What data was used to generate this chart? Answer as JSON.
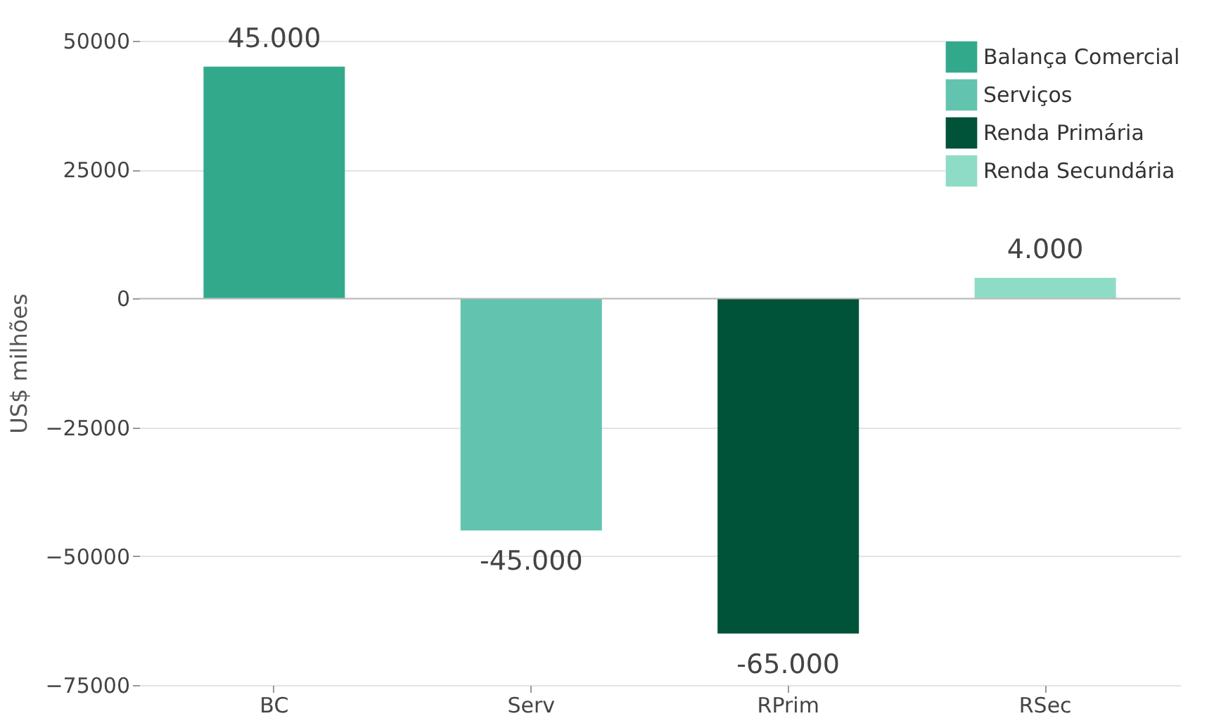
{
  "chart_data": {
    "type": "bar",
    "ylabel": "US$ milhões",
    "categories": [
      "BC",
      "Serv",
      "RPrim",
      "RSec"
    ],
    "series": [
      {
        "name": "Balança Comercial",
        "color": "#33a98c",
        "values": [
          45000,
          null,
          null,
          null
        ],
        "value_labels": [
          "45.000",
          null,
          null,
          null
        ]
      },
      {
        "name": "Serviços",
        "color": "#62c4ae",
        "values": [
          null,
          -45000,
          null,
          null
        ],
        "value_labels": [
          null,
          "-45.000",
          null,
          null
        ]
      },
      {
        "name": "Renda Primária",
        "color": "#005238",
        "values": [
          null,
          null,
          -65000,
          null
        ],
        "value_labels": [
          null,
          null,
          "-65.000",
          null
        ]
      },
      {
        "name": "Renda Secundária",
        "color": "#8fdcc6",
        "values": [
          null,
          null,
          null,
          4000
        ],
        "value_labels": [
          null,
          null,
          null,
          "4.000"
        ]
      }
    ],
    "ylim": [
      -75000,
      50000
    ],
    "yticks": [
      -75000,
      -50000,
      -25000,
      0,
      25000,
      50000
    ],
    "grid": "y",
    "legend": "top right"
  }
}
